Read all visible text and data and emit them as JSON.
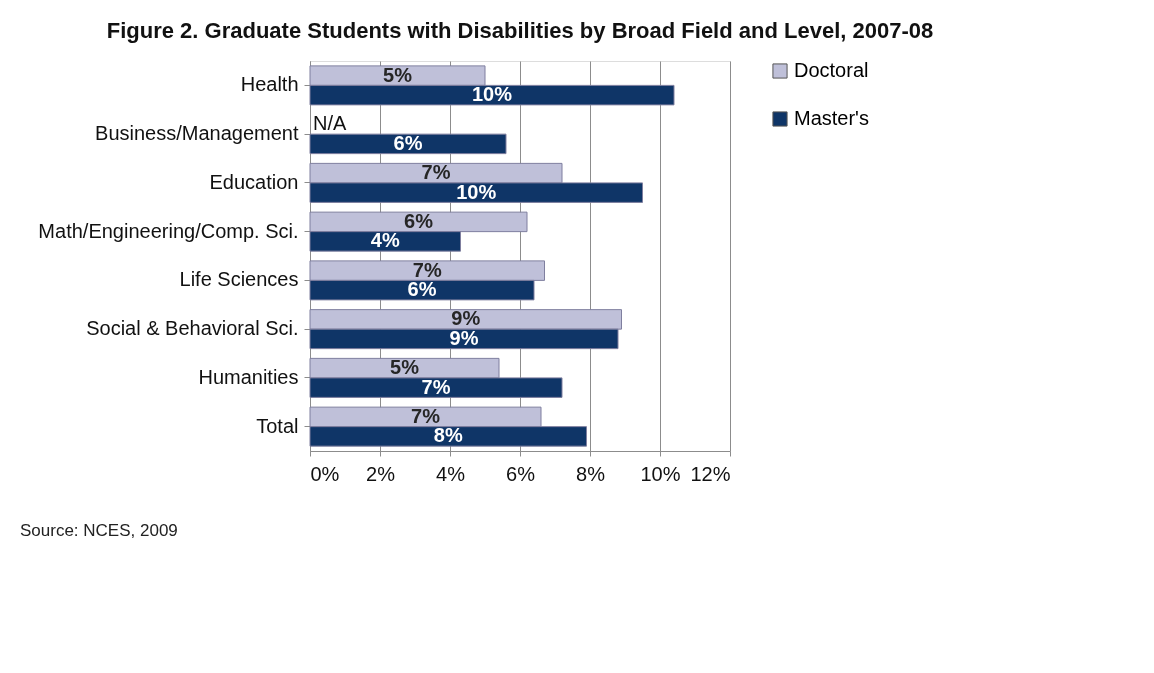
{
  "chart_data": {
    "type": "bar",
    "orientation": "horizontal",
    "title": "Figure 2. Graduate Students with Disabilities by Broad Field and Level, 2007-08",
    "categories": [
      "Health",
      "Business/Management",
      "Education",
      "Math/Engineering/Comp. Sci.",
      "Life Sciences",
      "Social & Behavioral Sci.",
      "Humanities",
      "Total"
    ],
    "series": [
      {
        "name": "Doctoral",
        "color": "#bfc0d9",
        "values": [
          5.0,
          null,
          7.2,
          6.2,
          6.7,
          8.9,
          5.4,
          6.6
        ],
        "value_labels": [
          "5%",
          "N/A",
          "7%",
          "6%",
          "7%",
          "9%",
          "5%",
          "7%"
        ]
      },
      {
        "name": "Master's",
        "color": "#0f3567",
        "values": [
          10.4,
          5.6,
          9.5,
          4.3,
          6.4,
          8.8,
          7.2,
          7.9
        ],
        "value_labels": [
          "10%",
          "6%",
          "10%",
          "4%",
          "6%",
          "9%",
          "7%",
          "8%"
        ]
      }
    ],
    "xlim": [
      0,
      12
    ],
    "xticks": [
      {
        "value": 0,
        "label": "0%"
      },
      {
        "value": 2,
        "label": "2%"
      },
      {
        "value": 4,
        "label": "4%"
      },
      {
        "value": 6,
        "label": "6%"
      },
      {
        "value": 8,
        "label": "8%"
      },
      {
        "value": 10,
        "label": "10%"
      },
      {
        "value": 12,
        "label": "12%"
      }
    ],
    "grid": "x",
    "legend": "right",
    "annotations": [
      "Source: NCES, 2009"
    ]
  }
}
